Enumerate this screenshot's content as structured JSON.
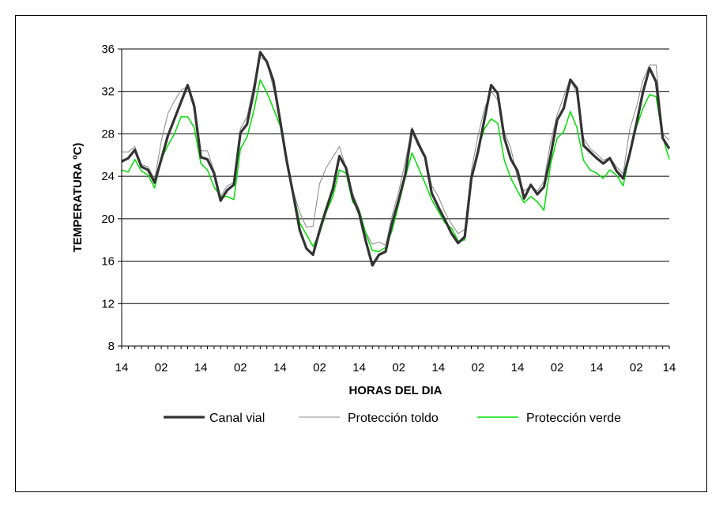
{
  "chart_data": {
    "type": "line",
    "xlabel": "HORAS DEL DIA",
    "ylabel": "TEMPERATURA ºC)",
    "ylim": [
      8,
      36
    ],
    "yticks": [
      8,
      12,
      16,
      20,
      24,
      28,
      32,
      36
    ],
    "xticks": [
      "14",
      "02",
      "14",
      "02",
      "14",
      "02",
      "14",
      "02",
      "14",
      "02",
      "14",
      "02",
      "14",
      "02",
      "14"
    ],
    "grid": "horizontal",
    "legend_position": "bottom",
    "x_hours_per_point": 2,
    "x_start_hour": 14,
    "series": [
      {
        "name": "Canal vial",
        "color": "#333333",
        "width": 3.2,
        "values": [
          25.4,
          25.7,
          26.5,
          24.9,
          24.6,
          23.4,
          25.6,
          27.8,
          29.4,
          31.0,
          32.6,
          30.6,
          25.8,
          25.6,
          24.3,
          21.7,
          22.7,
          23.2,
          28.1,
          28.9,
          31.9,
          35.7,
          34.8,
          33.0,
          29.3,
          25.5,
          22.3,
          18.9,
          17.2,
          16.6,
          18.9,
          20.9,
          22.8,
          25.9,
          24.8,
          22.0,
          20.5,
          17.9,
          15.6,
          16.6,
          16.9,
          19.6,
          21.8,
          24.2,
          28.4,
          27.0,
          25.8,
          22.4,
          21.1,
          19.9,
          18.6,
          17.7,
          18.3,
          23.8,
          26.3,
          29.4,
          32.6,
          31.8,
          27.6,
          25.6,
          24.5,
          21.9,
          23.2,
          22.3,
          23.0,
          25.9,
          29.3,
          30.4,
          33.1,
          32.3,
          26.9,
          26.3,
          25.7,
          25.2,
          25.7,
          24.5,
          23.8,
          26.1,
          28.9,
          31.9,
          34.2,
          32.9,
          27.6,
          26.6
        ]
      },
      {
        "name": "Protección toldo",
        "color": "#888888",
        "width": 1,
        "values": [
          26.3,
          26.3,
          26.8,
          25.1,
          24.9,
          23.7,
          27.3,
          29.9,
          31.1,
          32.1,
          32.5,
          31.0,
          26.4,
          26.4,
          24.5,
          22.1,
          23.1,
          23.4,
          28.5,
          29.6,
          32.6,
          35.2,
          34.8,
          32.3,
          29.6,
          26.0,
          22.6,
          20.6,
          19.2,
          19.3,
          23.3,
          24.8,
          25.8,
          26.8,
          24.8,
          22.4,
          20.9,
          18.7,
          17.6,
          17.8,
          17.5,
          20.3,
          22.6,
          25.4,
          28.6,
          27.3,
          25.9,
          23.1,
          22.1,
          20.6,
          19.5,
          18.6,
          19.0,
          24.5,
          27.8,
          30.4,
          32.0,
          31.2,
          28.2,
          26.6,
          23.8,
          22.6,
          23.1,
          22.6,
          23.5,
          27.2,
          29.8,
          31.5,
          33.2,
          31.7,
          27.6,
          26.6,
          26.1,
          25.5,
          25.8,
          24.9,
          24.2,
          28.4,
          30.5,
          33.0,
          34.5,
          34.5,
          28.0,
          27.4
        ]
      },
      {
        "name": "Protección verde",
        "color": "#00e000",
        "width": 1.5,
        "values": [
          24.6,
          24.4,
          25.6,
          24.5,
          24.1,
          22.9,
          25.6,
          26.9,
          28.0,
          29.6,
          29.6,
          28.6,
          25.2,
          24.6,
          23.0,
          22.1,
          22.1,
          21.8,
          26.6,
          27.7,
          30.1,
          33.1,
          31.9,
          30.4,
          28.8,
          25.6,
          22.6,
          19.6,
          18.5,
          17.4,
          18.6,
          20.6,
          22.1,
          24.6,
          24.3,
          21.6,
          20.8,
          18.6,
          17.0,
          16.9,
          17.3,
          18.9,
          21.4,
          23.9,
          26.2,
          24.8,
          23.3,
          21.8,
          20.7,
          19.6,
          19.1,
          17.9,
          18.0,
          23.9,
          26.6,
          28.5,
          29.4,
          29.0,
          25.5,
          23.8,
          22.6,
          21.5,
          22.1,
          21.6,
          20.8,
          25.1,
          27.6,
          28.2,
          30.1,
          28.6,
          25.5,
          24.6,
          24.3,
          23.8,
          24.6,
          24.1,
          23.1,
          26.0,
          28.6,
          30.4,
          31.7,
          31.5,
          27.7,
          25.6
        ]
      }
    ]
  }
}
